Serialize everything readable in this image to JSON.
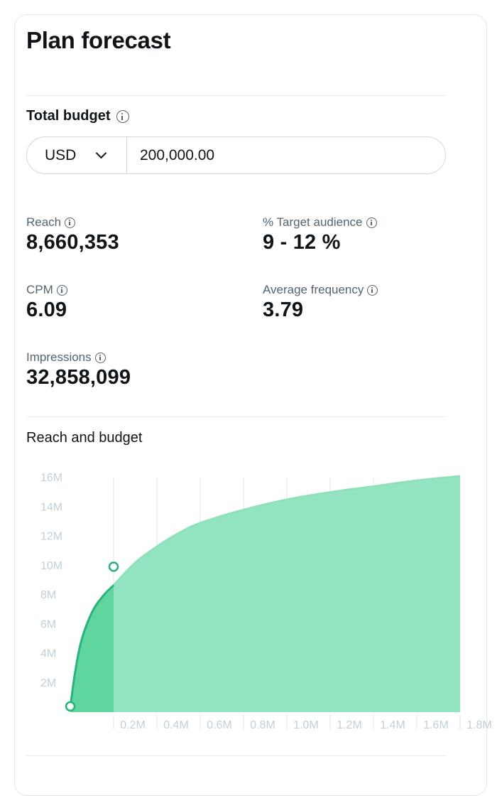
{
  "panel": {
    "title": "Plan forecast"
  },
  "budget": {
    "label": "Total budget",
    "currency": "USD",
    "amount": "200,000.00"
  },
  "metrics": {
    "reach": {
      "label": "Reach",
      "value": "8,660,353"
    },
    "target_audience": {
      "label": "% Target audience",
      "value": "9 - 12 %"
    },
    "cpm": {
      "label": "CPM",
      "value": "6.09"
    },
    "avg_frequency": {
      "label": "Average frequency",
      "value": "3.79"
    },
    "impressions": {
      "label": "Impressions",
      "value": "32,858,099"
    }
  },
  "chart_title": "Reach and budget",
  "chart_data": {
    "type": "area",
    "title": "Reach and budget",
    "xlabel": "",
    "ylabel": "",
    "ytick_labels": [
      "2M",
      "4M",
      "6M",
      "8M",
      "10M",
      "12M",
      "14M",
      "16M"
    ],
    "xtick_labels": [
      "0.2M",
      "0.4M",
      "0.6M",
      "0.8M",
      "1.0M",
      "1.2M",
      "1.4M",
      "1.6M",
      "1.8M"
    ],
    "ylim": [
      0,
      16000000
    ],
    "xlim": [
      0,
      1800000
    ],
    "selected_point": {
      "x": 200000,
      "y": 8660353
    },
    "series": [
      {
        "values_x": [
          0,
          20000,
          50000,
          100000,
          150000,
          200000,
          300000,
          400000,
          500000,
          600000,
          800000,
          1000000,
          1200000,
          1400000,
          1600000,
          1800000
        ],
        "values_y": [
          300000,
          2500000,
          4800000,
          6800000,
          7900000,
          8660353,
          10200000,
          11300000,
          12200000,
          12900000,
          13800000,
          14500000,
          15000000,
          15400000,
          15800000,
          16100000
        ]
      }
    ],
    "colors": {
      "area": "#93e4c0",
      "selected_area": "#5fd59f",
      "line": "#27b37a",
      "grid": "#e1e8ed"
    }
  }
}
